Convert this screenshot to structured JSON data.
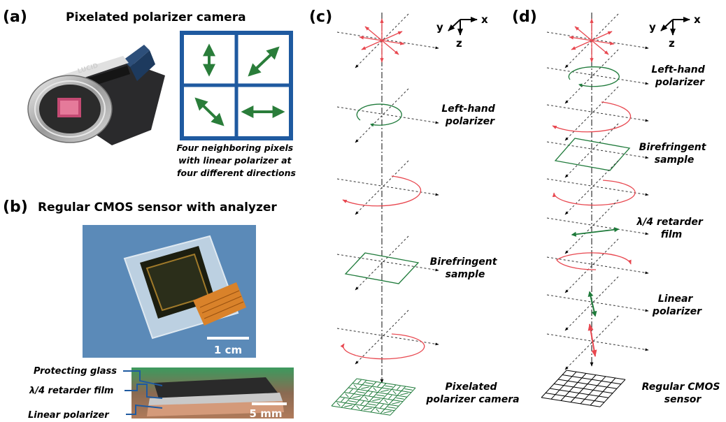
{
  "panel_a": {
    "label": "(a)",
    "title": "Pixelated polarizer camera",
    "camera_brand": "LUCID",
    "caption": [
      "Four neighboring pixels",
      "with linear polarizer at",
      "four different directions"
    ]
  },
  "panel_b": {
    "label": "(b)",
    "title": "Regular CMOS sensor with analyzer",
    "photo_scale": "1 cm",
    "stack_labels": [
      "Protecting glass",
      "λ/4 retarder film",
      "Linear polarizer"
    ],
    "stack_scale": "5 mm"
  },
  "panel_c": {
    "label": "(c)",
    "labels": {
      "left_hand": [
        "Left-hand",
        "polarizer"
      ],
      "birefringent": [
        "Birefringent",
        "sample"
      ],
      "camera": [
        "Pixelated",
        "polarizer camera"
      ]
    }
  },
  "panel_d": {
    "label": "(d)",
    "labels": {
      "left_hand": [
        "Left-hand",
        "polarizer"
      ],
      "birefringent": [
        "Birefringent",
        "sample"
      ],
      "retarder": [
        "λ/4 retarder",
        "film"
      ],
      "linear": [
        "Linear",
        "polarizer"
      ],
      "sensor": [
        "Regular CMOS",
        "sensor"
      ]
    }
  },
  "axes": {
    "x": "x",
    "y": "y",
    "z": "z"
  },
  "colors": {
    "red": "#e8474f",
    "green": "#1e7a3a",
    "blue": "#1f5aa0"
  }
}
